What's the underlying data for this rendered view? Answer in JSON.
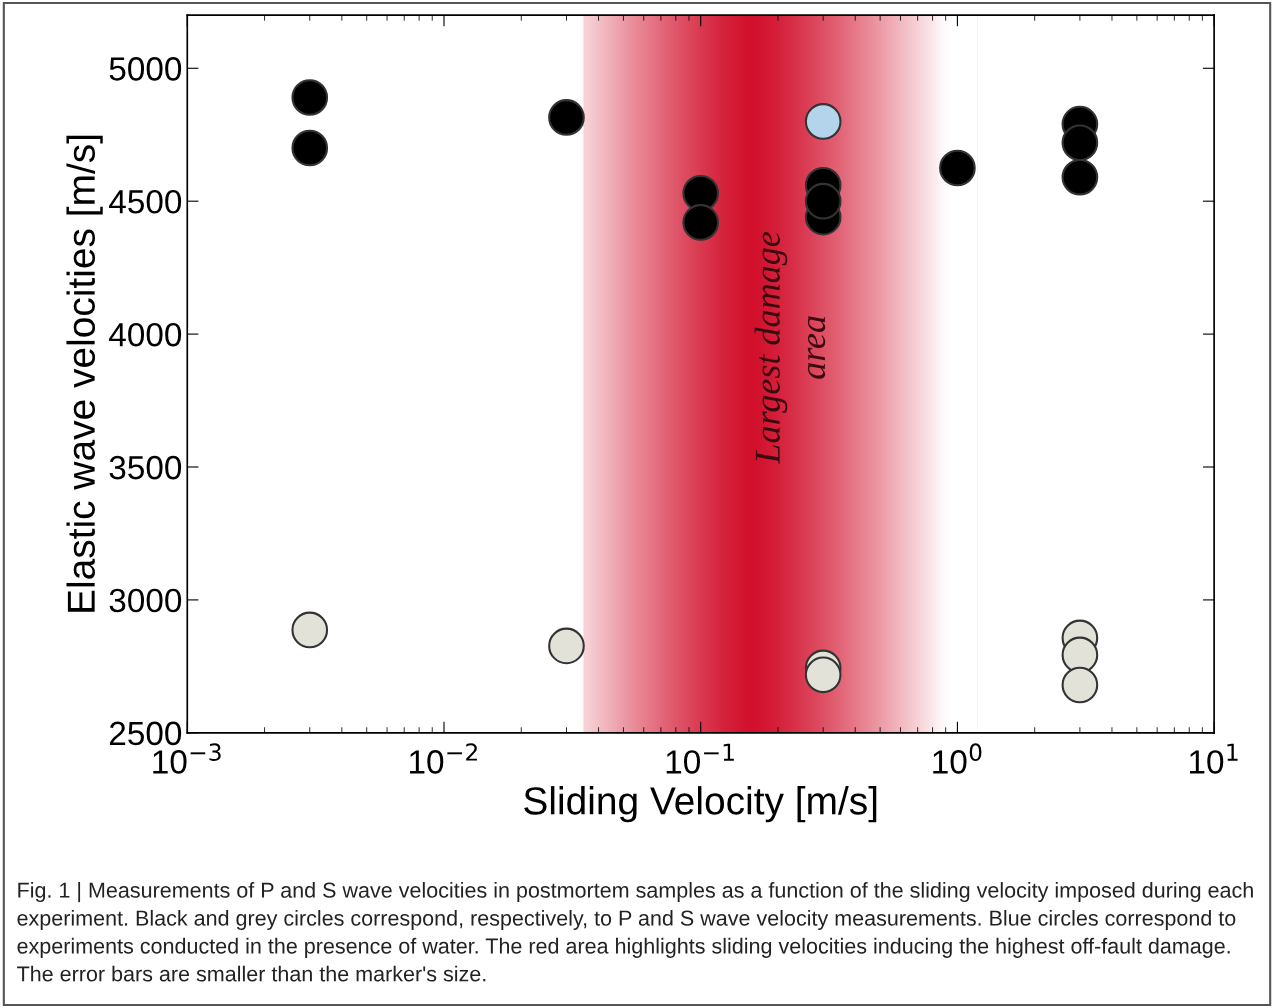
{
  "chart_data": {
    "type": "scatter",
    "xlabel": "Sliding Velocity [m/s]",
    "ylabel": "Elastic wave velocities [m/s]",
    "series": [
      {
        "color": "#000000",
        "x": [
          0.003,
          0.003,
          0.03,
          0.1,
          0.1,
          0.3,
          0.3,
          0.3,
          1,
          3,
          3,
          3
        ],
        "values": [
          4890,
          4700,
          4815,
          4530,
          4420,
          4560,
          4440,
          4500,
          4625,
          4790,
          4720,
          4590
        ]
      },
      {
        "color": "#e2e2d8",
        "x": [
          0.003,
          0.03,
          0.3,
          0.3,
          3,
          3,
          3
        ],
        "values": [
          2887,
          2827,
          2744,
          2718,
          2857,
          2793,
          2680
        ]
      },
      {
        "color": "#b4d4ec",
        "x": [
          0.3
        ],
        "values": [
          4800
        ]
      }
    ],
    "marker": "circle",
    "log": "x",
    "xlim": [
      0.001,
      10
    ],
    "ylim": [
      2500,
      5200
    ],
    "xticks": [
      {
        "value": 0.001,
        "label": "10$^{−3}$"
      },
      {
        "value": 0.01,
        "label": "10$^{−2}$"
      },
      {
        "value": 0.1,
        "label": "10$^{−1}$"
      },
      {
        "value": 1,
        "label": "10$^{0}$"
      },
      {
        "value": 10,
        "label": "10$^{1}$"
      }
    ],
    "yticks": [
      2500,
      3000,
      3500,
      4000,
      4500,
      5000
    ],
    "bands": [
      {
        "axis": "x",
        "from": 0.035,
        "to": 1.2,
        "label": "Largest damage\narea",
        "color": "#d2102c"
      }
    ],
    "annotations": [
      "Fig. 1 | Measurements of P and S wave velocities in postmortem samples as a function of the sliding velocity imposed during each experiment. Black and grey circles correspond, respectively, to P and S wave velocity measurements. Blue circles correspond to experiments conducted in the presence of water. The red area highlights sliding velocities inducing the highest off-fault damage. The error bars are smaller than the marker's size."
    ],
    "grid": false,
    "legend": false
  }
}
